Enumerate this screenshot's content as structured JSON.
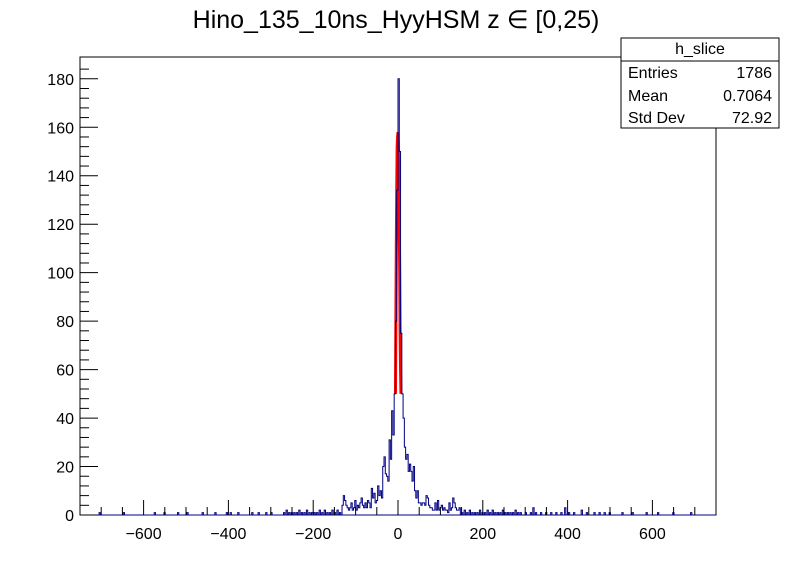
{
  "chart_data": {
    "type": "histogram",
    "title": "Hino_135_10ns_HyyHSM z  ∈ [0,25)",
    "xlabel": "",
    "ylabel": "",
    "xlim": [
      -750,
      750
    ],
    "ylim": [
      0,
      189
    ],
    "x_ticks": [
      -600,
      -400,
      -200,
      0,
      200,
      400,
      600
    ],
    "y_ticks": [
      0,
      20,
      40,
      60,
      80,
      100,
      120,
      140,
      160,
      180
    ],
    "x_tick_labels": [
      "−600",
      "−400",
      "−200",
      "0",
      "200",
      "400",
      "600"
    ],
    "y_tick_labels": [
      "0",
      "20",
      "40",
      "60",
      "80",
      "100",
      "120",
      "140",
      "160",
      "180"
    ],
    "grid": false,
    "bin_width": 3,
    "histogram": {
      "color": "#000080",
      "bins": [
        [
          -705,
          1
        ],
        [
          -648,
          1
        ],
        [
          -575,
          1
        ],
        [
          -552,
          1
        ],
        [
          -520,
          1
        ],
        [
          -498,
          1
        ],
        [
          -462,
          1
        ],
        [
          -432,
          1
        ],
        [
          -405,
          1
        ],
        [
          -396,
          1
        ],
        [
          -378,
          1
        ],
        [
          -345,
          1
        ],
        [
          -330,
          1
        ],
        [
          -312,
          1
        ],
        [
          -300,
          1
        ],
        [
          -270,
          1
        ],
        [
          -264,
          2
        ],
        [
          -258,
          1
        ],
        [
          -252,
          1
        ],
        [
          -246,
          1
        ],
        [
          -240,
          1
        ],
        [
          -234,
          2
        ],
        [
          -228,
          1
        ],
        [
          -222,
          1
        ],
        [
          -216,
          2
        ],
        [
          -210,
          1
        ],
        [
          -204,
          1
        ],
        [
          -198,
          1
        ],
        [
          -192,
          1
        ],
        [
          -186,
          2
        ],
        [
          -180,
          1
        ],
        [
          -174,
          2
        ],
        [
          -168,
          1
        ],
        [
          -162,
          1
        ],
        [
          -156,
          2
        ],
        [
          -150,
          1
        ],
        [
          -144,
          2
        ],
        [
          -138,
          1
        ],
        [
          -132,
          4
        ],
        [
          -129,
          8
        ],
        [
          -126,
          6
        ],
        [
          -123,
          4
        ],
        [
          -120,
          3
        ],
        [
          -117,
          2
        ],
        [
          -114,
          3
        ],
        [
          -111,
          5
        ],
        [
          -108,
          2
        ],
        [
          -105,
          3
        ],
        [
          -102,
          6
        ],
        [
          -99,
          2
        ],
        [
          -96,
          4
        ],
        [
          -93,
          3
        ],
        [
          -90,
          5
        ],
        [
          -87,
          7
        ],
        [
          -84,
          4
        ],
        [
          -81,
          3
        ],
        [
          -78,
          5
        ],
        [
          -75,
          3
        ],
        [
          -72,
          6
        ],
        [
          -69,
          5
        ],
        [
          -66,
          3
        ],
        [
          -63,
          11
        ],
        [
          -60,
          7
        ],
        [
          -57,
          9
        ],
        [
          -54,
          5
        ],
        [
          -51,
          6
        ],
        [
          -48,
          12
        ],
        [
          -45,
          8
        ],
        [
          -42,
          10
        ],
        [
          -39,
          7
        ],
        [
          -36,
          20
        ],
        [
          -33,
          24
        ],
        [
          -30,
          17
        ],
        [
          -27,
          16
        ],
        [
          -24,
          14
        ],
        [
          -21,
          31
        ],
        [
          -18,
          23
        ],
        [
          -15,
          43
        ],
        [
          -12,
          33
        ],
        [
          -9,
          50
        ],
        [
          -6,
          80
        ],
        [
          -3,
          134
        ],
        [
          0,
          180
        ],
        [
          3,
          150
        ],
        [
          6,
          75
        ],
        [
          9,
          50
        ],
        [
          12,
          40
        ],
        [
          15,
          28
        ],
        [
          18,
          23
        ],
        [
          21,
          25
        ],
        [
          24,
          18
        ],
        [
          27,
          21
        ],
        [
          30,
          18
        ],
        [
          33,
          14
        ],
        [
          36,
          20
        ],
        [
          39,
          10
        ],
        [
          42,
          7
        ],
        [
          45,
          10
        ],
        [
          48,
          5
        ],
        [
          51,
          5
        ],
        [
          54,
          4
        ],
        [
          57,
          5
        ],
        [
          60,
          5
        ],
        [
          63,
          4
        ],
        [
          66,
          8
        ],
        [
          69,
          7
        ],
        [
          72,
          4
        ],
        [
          75,
          3
        ],
        [
          78,
          3
        ],
        [
          81,
          2
        ],
        [
          84,
          2
        ],
        [
          87,
          5
        ],
        [
          90,
          2
        ],
        [
          93,
          6
        ],
        [
          96,
          2
        ],
        [
          99,
          3
        ],
        [
          102,
          4
        ],
        [
          105,
          2
        ],
        [
          108,
          3
        ],
        [
          111,
          2
        ],
        [
          114,
          2
        ],
        [
          117,
          1
        ],
        [
          120,
          5
        ],
        [
          123,
          2
        ],
        [
          126,
          3
        ],
        [
          129,
          7
        ],
        [
          132,
          5
        ],
        [
          135,
          3
        ],
        [
          138,
          2
        ],
        [
          141,
          2
        ],
        [
          144,
          3
        ],
        [
          150,
          1
        ],
        [
          156,
          2
        ],
        [
          162,
          1
        ],
        [
          168,
          2
        ],
        [
          174,
          1
        ],
        [
          180,
          1
        ],
        [
          186,
          1
        ],
        [
          192,
          2
        ],
        [
          198,
          1
        ],
        [
          204,
          1
        ],
        [
          210,
          2
        ],
        [
          216,
          1
        ],
        [
          222,
          2
        ],
        [
          228,
          1
        ],
        [
          234,
          1
        ],
        [
          240,
          1
        ],
        [
          246,
          2
        ],
        [
          252,
          1
        ],
        [
          258,
          1
        ],
        [
          264,
          1
        ],
        [
          270,
          1
        ],
        [
          276,
          2
        ],
        [
          282,
          1
        ],
        [
          288,
          1
        ],
        [
          300,
          1
        ],
        [
          312,
          1
        ],
        [
          318,
          3
        ],
        [
          324,
          1
        ],
        [
          336,
          1
        ],
        [
          348,
          1
        ],
        [
          360,
          1
        ],
        [
          372,
          1
        ],
        [
          384,
          1
        ],
        [
          393,
          3
        ],
        [
          402,
          1
        ],
        [
          414,
          1
        ],
        [
          432,
          2
        ],
        [
          444,
          1
        ],
        [
          462,
          1
        ],
        [
          474,
          1
        ],
        [
          486,
          1
        ],
        [
          498,
          1
        ],
        [
          528,
          1
        ],
        [
          552,
          1
        ],
        [
          585,
          1
        ],
        [
          612,
          1
        ],
        [
          648,
          1
        ],
        [
          690,
          1
        ]
      ]
    },
    "fit": {
      "color": "#ff0000",
      "points": [
        [
          -6,
          50
        ],
        [
          -5,
          80
        ],
        [
          -4,
          110
        ],
        [
          -3,
          134
        ],
        [
          -2,
          152
        ],
        [
          -1,
          156
        ],
        [
          0,
          158
        ],
        [
          1,
          150
        ],
        [
          2,
          130
        ],
        [
          3,
          120
        ],
        [
          4,
          100
        ],
        [
          5,
          75
        ],
        [
          6,
          60
        ],
        [
          7,
          50
        ]
      ]
    },
    "stats_box": {
      "name": "h_slice",
      "rows": [
        {
          "label": "Entries",
          "value": "1786"
        },
        {
          "label": "Mean",
          "value": "0.7064"
        },
        {
          "label": "Std Dev",
          "value": "72.92"
        }
      ]
    }
  }
}
